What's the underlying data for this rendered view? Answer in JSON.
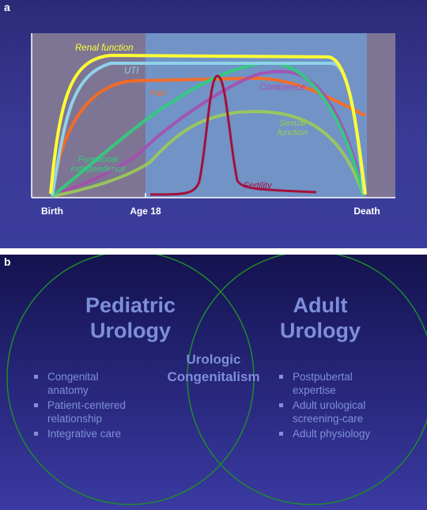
{
  "panel_a": {
    "letter": "a",
    "x_ticks": [
      "Birth",
      "Age 18",
      "Death"
    ],
    "curves": [
      {
        "label": "Renal function",
        "color": "#ffff33"
      },
      {
        "label": "UTI",
        "color": "#8fd2ea"
      },
      {
        "label": "Pain",
        "color": "#ff6a1a"
      },
      {
        "label": "Continence",
        "color": "#a94ab0"
      },
      {
        "label": "Sexual function",
        "color": "#9ccc55"
      },
      {
        "label": "Functional independence",
        "color": "#2fcf7a"
      },
      {
        "label": "Fertility",
        "color": "#a3103a"
      }
    ]
  },
  "panel_b": {
    "letter": "b",
    "left_title": [
      "Pediatric",
      "Urology"
    ],
    "right_title": [
      "Adult",
      "Urology"
    ],
    "center_title": [
      "Urologic",
      "Congenitalism"
    ],
    "left_bullets": [
      [
        "Congenital",
        "anatomy"
      ],
      [
        "Patient-centered",
        "relationship"
      ],
      [
        "Integrative care"
      ]
    ],
    "right_bullets": [
      [
        "Postpubertal",
        "expertise"
      ],
      [
        "Adult urological",
        "screening-care"
      ],
      [
        "Adult physiology"
      ]
    ]
  }
}
